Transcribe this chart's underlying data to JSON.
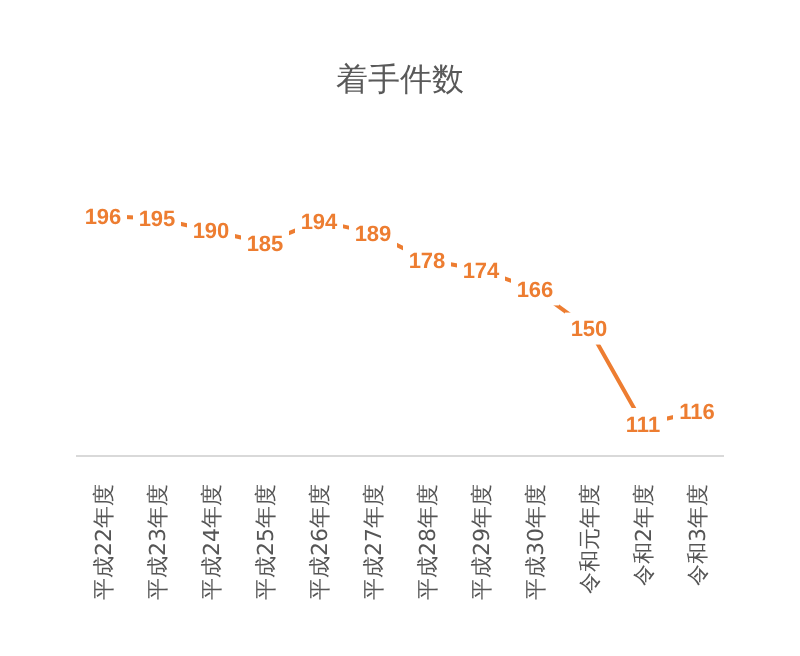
{
  "chart_data": {
    "type": "line",
    "title": "着手件数",
    "categories": [
      "平成22年度",
      "平成23年度",
      "平成24年度",
      "平成25年度",
      "平成26年度",
      "平成27年度",
      "平成28年度",
      "平成29年度",
      "平成30年度",
      "令和元年度",
      "令和2年度",
      "令和3年度"
    ],
    "series": [
      {
        "color": "#ed7d31",
        "values": [
          196,
          195,
          190,
          185,
          194,
          189,
          178,
          174,
          166,
          150,
          111,
          116
        ]
      }
    ],
    "data_labels": true,
    "line_style": "solid"
  }
}
